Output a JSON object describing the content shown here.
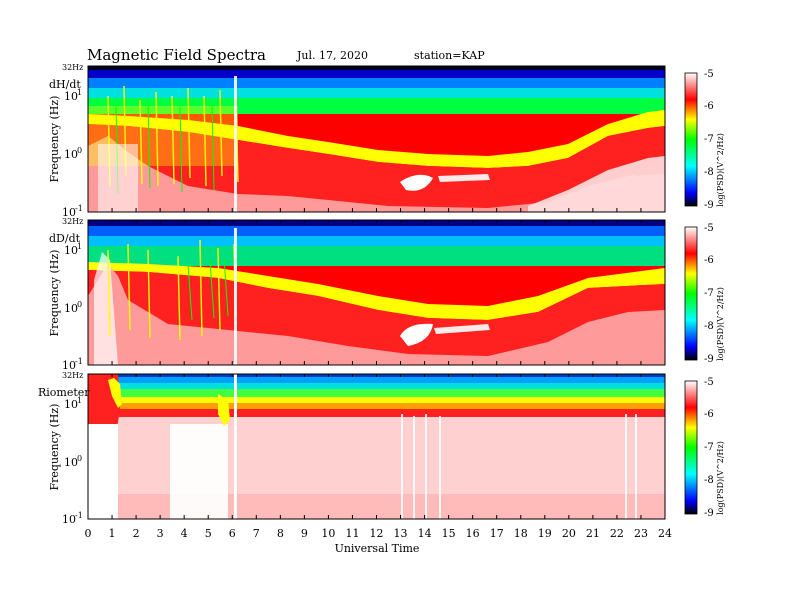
{
  "header": {
    "title": "Magnetic  Field  Spectra",
    "date": "Jul.  17, 2020",
    "station": "station=KAP"
  },
  "chart_data": {
    "type": "heatmap",
    "xlabel": "Universal Time",
    "xlim": [
      0,
      24
    ],
    "x_ticks": [
      "0",
      "1",
      "2",
      "3",
      "4",
      "5",
      "6",
      "7",
      "8",
      "9",
      "10",
      "11",
      "12",
      "13",
      "14",
      "15",
      "16",
      "17",
      "18",
      "19",
      "20",
      "21",
      "22",
      "23",
      "24"
    ],
    "colorbar": {
      "title": "log(PSD)(V^2/Hz)",
      "range": [
        -9,
        -5
      ],
      "ticks": [
        "-5",
        "-6",
        "-7",
        "-8",
        "-9"
      ],
      "colors": [
        "#000000",
        "#0000ff",
        "#00ffff",
        "#00ff00",
        "#ffff00",
        "#ff0000",
        "#ffffff"
      ]
    },
    "panels": [
      {
        "label": "dH/dt",
        "ylabel": "Frequency  (Hz)",
        "y_top_label": "32Hz",
        "y_ticks": [
          "10",
          "10",
          "10"
        ],
        "y_tick_exps": [
          "1",
          "0",
          "-1"
        ]
      },
      {
        "label": "dD/dt",
        "ylabel": "Frequency  (Hz)",
        "y_top_label": "32Hz",
        "y_ticks": [
          "10",
          "10",
          "10"
        ],
        "y_tick_exps": [
          "1",
          "0",
          "-1"
        ]
      },
      {
        "label": "Riometer",
        "ylabel": "Frequency  (Hz)",
        "y_top_label": "32Hz",
        "y_ticks": [
          "10",
          "10",
          "10"
        ],
        "y_tick_exps": [
          "1",
          "0",
          "-1"
        ]
      }
    ]
  }
}
